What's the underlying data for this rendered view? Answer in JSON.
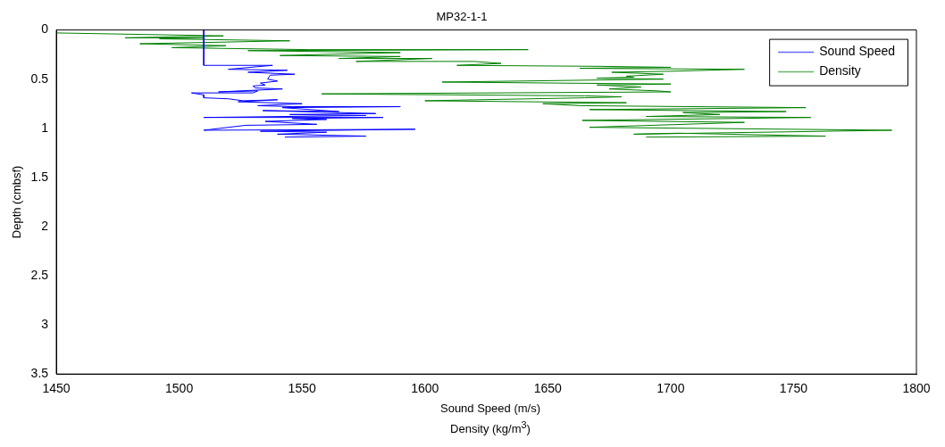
{
  "chart_data": {
    "type": "line",
    "title": "MP32-1-1",
    "xlabel": "Sound Speed (m/s)\nDensity (kg/m$^{3}$)",
    "ylabel": "Depth (cmbsf)",
    "xlim": [
      1450,
      1800
    ],
    "xticks": [
      1450,
      1500,
      1550,
      1600,
      1650,
      1700,
      1750,
      1800
    ],
    "ylim": [
      3.5,
      0
    ],
    "yticks": [
      0,
      0.5,
      1,
      1.5,
      2,
      2.5,
      3,
      3.5
    ],
    "grid": false,
    "legend": "top right",
    "marker": "none",
    "line_style": "solid",
    "series": [
      {
        "name": "Sound Speed",
        "color": "#0000ff",
        "x": [
          1510,
          1510,
          1538,
          1520,
          1544,
          1528,
          1547,
          1537,
          1536,
          1540,
          1533,
          1535,
          1530,
          1531,
          1542,
          1516,
          1532,
          1530,
          1505,
          1510,
          1510,
          1520,
          1526,
          1540,
          1524,
          1550,
          1532,
          1546,
          1590,
          1542,
          1565,
          1534,
          1580,
          1545,
          1576,
          1510,
          1583,
          1546,
          1560,
          1535,
          1556,
          1527,
          1510,
          1596,
          1533,
          1560,
          1540,
          1576,
          1543
        ],
        "values": [
          0,
          0.36,
          0.36,
          0.4,
          0.41,
          0.43,
          0.45,
          0.46,
          0.5,
          0.52,
          0.54,
          0.56,
          0.57,
          0.59,
          0.6,
          0.63,
          0.62,
          0.64,
          0.64,
          0.66,
          0.69,
          0.7,
          0.72,
          0.71,
          0.73,
          0.75,
          0.77,
          0.78,
          0.78,
          0.79,
          0.83,
          0.82,
          0.85,
          0.86,
          0.87,
          0.89,
          0.89,
          0.9,
          0.91,
          0.93,
          0.96,
          0.97,
          1.02,
          1.01,
          1.03,
          1.04,
          1.06,
          1.08,
          1.09
        ]
      },
      {
        "name": "Density",
        "color": "#008000",
        "x": [
          1450,
          1518,
          1478,
          1510,
          1492,
          1545,
          1484,
          1519,
          1497,
          1553,
          1642,
          1528,
          1590,
          1541,
          1590,
          1565,
          1603,
          1572,
          1620,
          1631,
          1613,
          1672,
          1700,
          1663,
          1730,
          1700,
          1676,
          1697,
          1682,
          1685,
          1670,
          1697,
          1607,
          1700,
          1670,
          1688,
          1675,
          1695,
          1700,
          1558,
          1665,
          1680,
          1665,
          1600,
          1682,
          1648,
          1663,
          1755,
          1667,
          1747,
          1705,
          1720,
          1690,
          1757,
          1664,
          1730,
          1667,
          1790,
          1685,
          1703,
          1763,
          1690
        ],
        "values": [
          0.03,
          0.06,
          0.08,
          0.08,
          0.09,
          0.11,
          0.14,
          0.16,
          0.18,
          0.2,
          0.2,
          0.21,
          0.23,
          0.26,
          0.27,
          0.29,
          0.29,
          0.32,
          0.32,
          0.34,
          0.36,
          0.37,
          0.38,
          0.39,
          0.4,
          0.42,
          0.43,
          0.45,
          0.47,
          0.48,
          0.49,
          0.5,
          0.53,
          0.55,
          0.56,
          0.58,
          0.6,
          0.62,
          0.63,
          0.65,
          0.67,
          0.68,
          0.69,
          0.72,
          0.74,
          0.75,
          0.77,
          0.79,
          0.81,
          0.83,
          0.84,
          0.86,
          0.88,
          0.89,
          0.92,
          0.94,
          0.99,
          1.02,
          1.06,
          1.05,
          1.08,
          1.09
        ]
      }
    ]
  }
}
